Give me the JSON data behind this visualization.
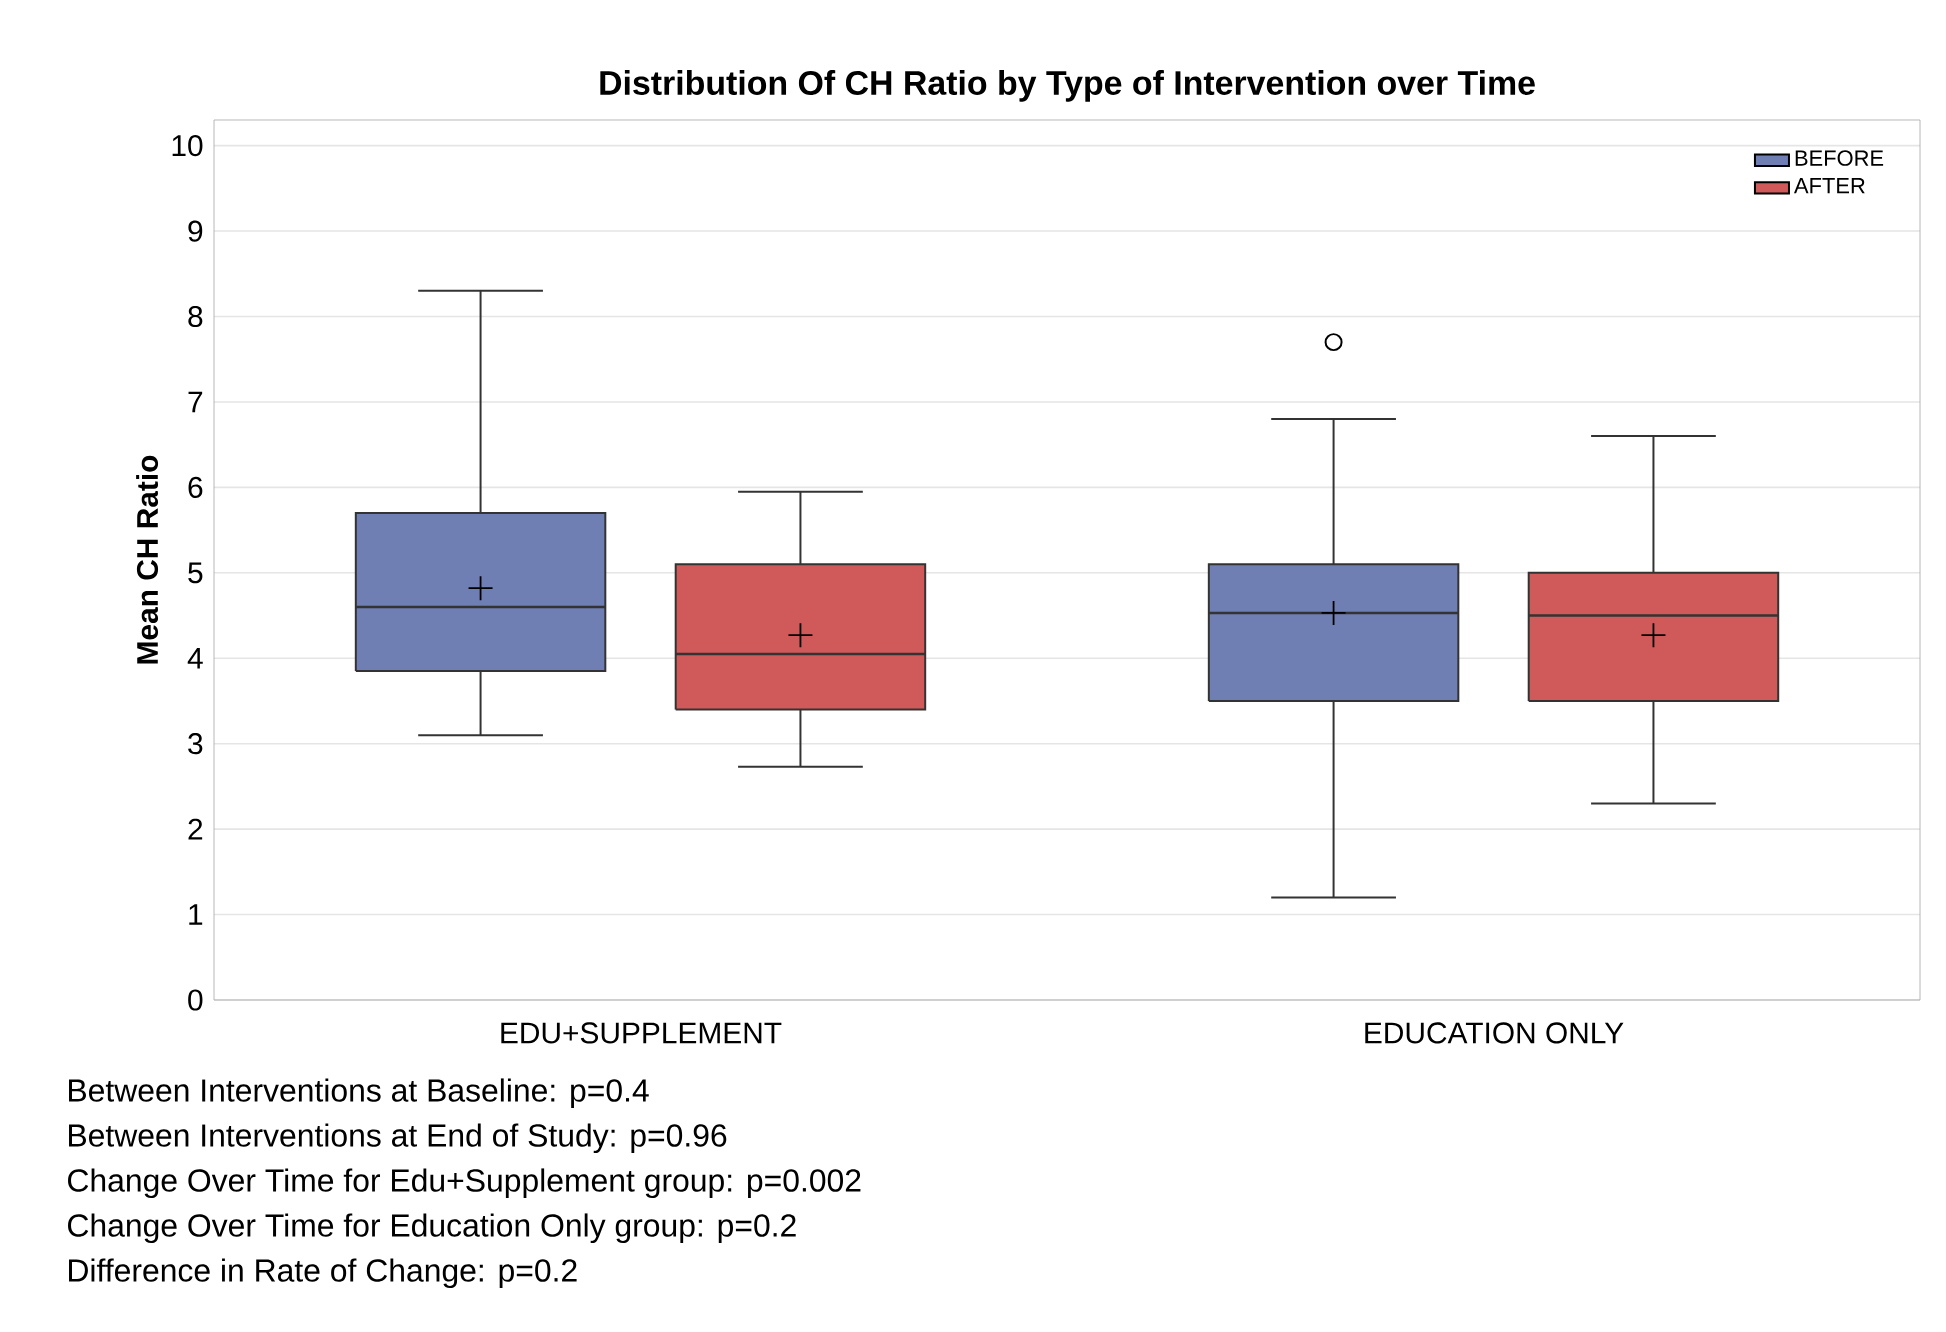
{
  "chart_data": {
    "type": "box",
    "title": "Distribution Of CH Ratio by Type of Intervention over Time",
    "ylabel": "Mean CH Ratio",
    "categories": [
      "EDU+SUPPLEMENT",
      "EDUCATION ONLY"
    ],
    "series": [
      {
        "name": "BEFORE",
        "color": "#6f7fb3",
        "boxes": [
          {
            "low": 3.1,
            "q1": 3.85,
            "median": 4.6,
            "q3": 5.7,
            "high": 8.3,
            "mean": 4.82
          },
          {
            "low": 1.2,
            "q1": 3.5,
            "median": 4.53,
            "q3": 5.1,
            "high": 6.8,
            "mean": 4.53,
            "outliers": [
              7.7
            ]
          }
        ]
      },
      {
        "name": "AFTER",
        "color": "#d05a5a",
        "boxes": [
          {
            "low": 2.73,
            "q1": 3.4,
            "median": 4.05,
            "q3": 5.1,
            "high": 5.95,
            "mean": 4.27
          },
          {
            "low": 2.3,
            "q1": 3.5,
            "median": 4.5,
            "q3": 5.0,
            "high": 6.6,
            "mean": 4.27
          }
        ]
      }
    ],
    "ylim": [
      0,
      10.3
    ],
    "yticks": [
      0,
      1,
      2,
      3,
      4,
      5,
      6,
      7,
      8,
      9,
      10
    ],
    "grid": "y",
    "legend": "top right",
    "annotations": [
      "Between Interventions at Baseline: p=0.4",
      "Between Interventions at End of Study: p=0.96",
      "Change Over Time for Edu+Supplement group: p=0.002",
      "Change Over Time for Education Only group: p=0.2",
      "Difference in Rate of Change: p=0.2"
    ]
  }
}
